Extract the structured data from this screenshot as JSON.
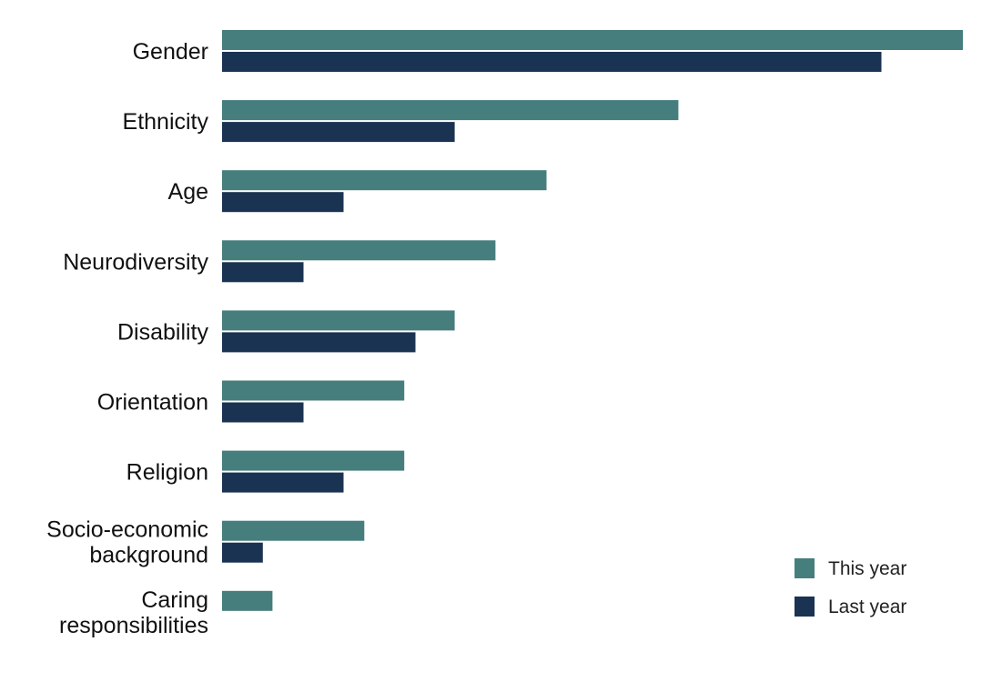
{
  "chart_data": {
    "type": "bar",
    "orientation": "horizontal",
    "title": "",
    "xlabel": "",
    "ylabel": "",
    "categories": [
      [
        "Gender"
      ],
      [
        "Ethnicity"
      ],
      [
        "Age"
      ],
      [
        "Neurodiversity"
      ],
      [
        "Disability"
      ],
      [
        "Orientation"
      ],
      [
        "Religion"
      ],
      [
        "Socio-economic",
        "background"
      ],
      [
        "Caring",
        "responsibilities"
      ]
    ],
    "series": [
      {
        "name": "This year",
        "color": "#457e7d",
        "values": [
          100,
          61.6,
          43.8,
          36.9,
          31.4,
          24.6,
          24.6,
          19.2,
          6.8
        ]
      },
      {
        "name": "Last year",
        "color": "#1b3352",
        "values": [
          89.0,
          31.4,
          16.4,
          11.0,
          26.1,
          11.0,
          16.4,
          5.5,
          0
        ]
      }
    ],
    "xlim": [
      0,
      100
    ],
    "grid": false,
    "legend_position": "bottom-right"
  }
}
